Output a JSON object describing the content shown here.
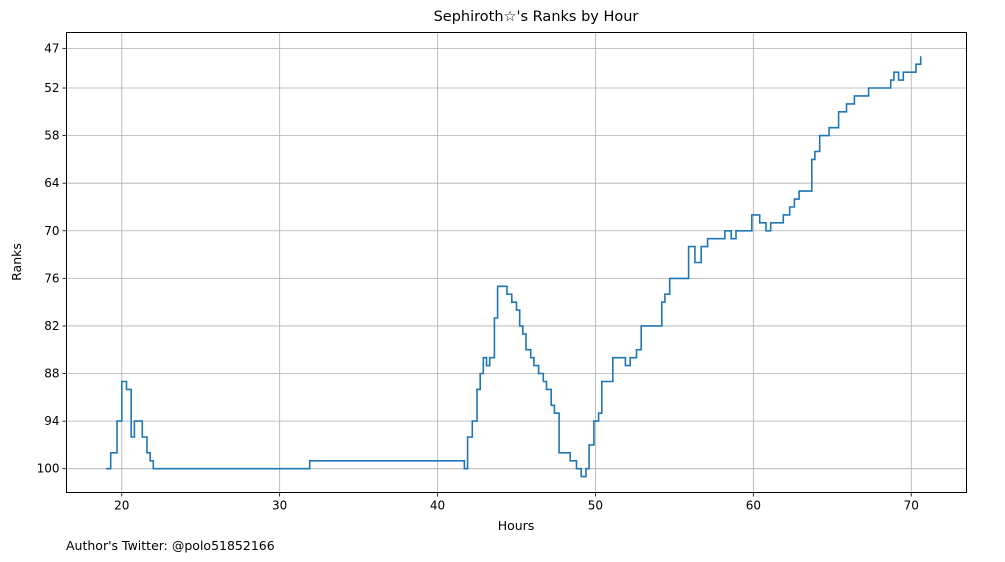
{
  "footer": {
    "text": "Author's Twitter: @polo51852166"
  },
  "chart_data": {
    "type": "line",
    "step": "post",
    "title": "Sephiroth☆'s Ranks by Hour",
    "xlabel": "Hours",
    "ylabel": "Ranks",
    "xlim": [
      16.5,
      73.5
    ],
    "ylim": [
      103,
      45
    ],
    "y_inverted": true,
    "xticks": [
      20,
      30,
      40,
      50,
      60,
      70
    ],
    "yticks": [
      47,
      52,
      58,
      64,
      70,
      76,
      82,
      88,
      94,
      100
    ],
    "grid": true,
    "legend": "none",
    "series": [
      {
        "color": "#1f77b4",
        "x": [
          19.0,
          19.3,
          19.7,
          20.0,
          20.3,
          20.6,
          20.8,
          21.3,
          21.6,
          21.8,
          22.0,
          31.9,
          41.7,
          41.9,
          42.2,
          42.5,
          42.7,
          42.9,
          43.1,
          43.3,
          43.6,
          43.8,
          44.1,
          44.4,
          44.7,
          45.0,
          45.2,
          45.4,
          45.6,
          45.9,
          46.1,
          46.4,
          46.7,
          46.9,
          47.2,
          47.4,
          47.7,
          48.2,
          48.4,
          48.8,
          49.1,
          49.4,
          49.6,
          49.9,
          50.2,
          50.4,
          50.6,
          51.1,
          51.9,
          52.2,
          52.6,
          52.9,
          53.4,
          54.2,
          54.4,
          54.7,
          55.6,
          55.9,
          56.3,
          56.7,
          57.1,
          58.0,
          58.2,
          58.6,
          58.9,
          59.9,
          60.4,
          60.8,
          61.1,
          61.9,
          62.3,
          62.6,
          62.9,
          63.7,
          63.9,
          64.2,
          64.8,
          65.4,
          65.9,
          66.4,
          67.3,
          68.4,
          68.7,
          68.9,
          69.2,
          69.5,
          70.3,
          70.6
        ],
        "y": [
          100,
          98,
          94,
          89,
          90,
          96,
          94,
          96,
          98,
          99,
          100,
          99,
          100,
          96,
          94,
          90,
          88,
          86,
          87,
          86,
          81,
          77,
          77,
          78,
          79,
          80,
          82,
          83,
          85,
          86,
          87,
          88,
          89,
          90,
          92,
          93,
          98,
          98,
          99,
          100,
          101,
          100,
          97,
          94,
          93,
          89,
          89,
          86,
          87,
          86,
          85,
          82,
          82,
          79,
          78,
          76,
          76,
          72,
          74,
          72,
          71,
          71,
          70,
          71,
          70,
          68,
          69,
          70,
          69,
          68,
          67,
          66,
          65,
          61,
          60,
          58,
          57,
          55,
          54,
          53,
          52,
          52,
          51,
          50,
          51,
          50,
          49,
          48
        ]
      }
    ]
  }
}
